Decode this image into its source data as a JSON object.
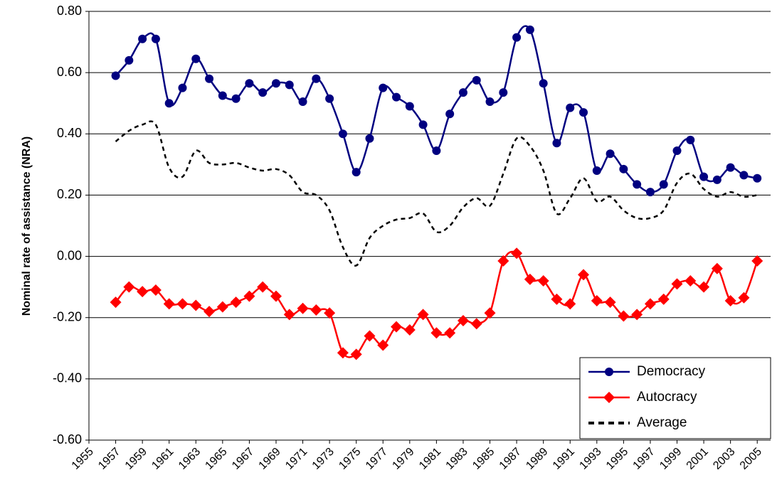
{
  "chart_data": {
    "type": "line",
    "y_label": "Nominal rate of assistance (NRA)",
    "x": [
      1957,
      1958,
      1959,
      1960,
      1961,
      1962,
      1963,
      1964,
      1965,
      1966,
      1967,
      1968,
      1969,
      1970,
      1971,
      1972,
      1973,
      1974,
      1975,
      1976,
      1977,
      1978,
      1979,
      1980,
      1981,
      1982,
      1983,
      1984,
      1985,
      1986,
      1987,
      1988,
      1989,
      1990,
      1991,
      1992,
      1993,
      1994,
      1995,
      1996,
      1997,
      1998,
      1999,
      2000,
      2001,
      2002,
      2003,
      2004,
      2005
    ],
    "xlim": [
      1955,
      2006
    ],
    "xticks": [
      1955,
      1957,
      1959,
      1961,
      1963,
      1965,
      1967,
      1969,
      1971,
      1973,
      1975,
      1977,
      1979,
      1981,
      1983,
      1985,
      1987,
      1989,
      1991,
      1993,
      1995,
      1997,
      1999,
      2001,
      2003,
      2005
    ],
    "ylim": [
      -0.6,
      0.8
    ],
    "yticks": [
      {
        "value": -0.6,
        "label": "-0.60"
      },
      {
        "value": -0.4,
        "label": "-0.40"
      },
      {
        "value": -0.2,
        "label": "-0.20"
      },
      {
        "value": 0,
        "label": "0.00"
      },
      {
        "value": 0.2,
        "label": "0.20"
      },
      {
        "value": 0.4,
        "label": "0.40"
      },
      {
        "value": 0.6,
        "label": "0.60"
      },
      {
        "value": 0.8,
        "label": "0.80"
      }
    ],
    "grid": true,
    "legend": "bottom-right",
    "series": [
      {
        "name": "Democracy",
        "color": "#000080",
        "marker": "circle",
        "line_style": "solid",
        "values": [
          0.59,
          0.64,
          0.71,
          0.71,
          0.5,
          0.55,
          0.645,
          0.58,
          0.525,
          0.515,
          0.565,
          0.535,
          0.565,
          0.56,
          0.505,
          0.58,
          0.515,
          0.4,
          0.275,
          0.385,
          0.55,
          0.52,
          0.49,
          0.43,
          0.345,
          0.465,
          0.535,
          0.575,
          0.505,
          0.535,
          0.715,
          0.74,
          0.565,
          0.37,
          0.485,
          0.47,
          0.28,
          0.335,
          0.285,
          0.235,
          0.21,
          0.235,
          0.345,
          0.38,
          0.26,
          0.25,
          0.29,
          0.265,
          0.255
        ]
      },
      {
        "name": "Autocracy",
        "color": "#ff0000",
        "marker": "diamond",
        "line_style": "solid",
        "values": [
          -0.15,
          -0.1,
          -0.115,
          -0.11,
          -0.155,
          -0.155,
          -0.16,
          -0.18,
          -0.165,
          -0.15,
          -0.13,
          -0.1,
          -0.13,
          -0.19,
          -0.17,
          -0.175,
          -0.185,
          -0.315,
          -0.32,
          -0.26,
          -0.29,
          -0.23,
          -0.24,
          -0.19,
          -0.25,
          -0.25,
          -0.21,
          -0.22,
          -0.185,
          -0.015,
          0.01,
          -0.075,
          -0.08,
          -0.14,
          -0.155,
          -0.06,
          -0.145,
          -0.15,
          -0.195,
          -0.19,
          -0.155,
          -0.14,
          -0.09,
          -0.08,
          -0.1,
          -0.04,
          -0.145,
          -0.135,
          -0.015
        ]
      },
      {
        "name": "Average",
        "color": "#000000",
        "marker": "none",
        "line_style": "dashed",
        "values": [
          0.375,
          0.41,
          0.43,
          0.43,
          0.29,
          0.26,
          0.345,
          0.305,
          0.3,
          0.305,
          0.29,
          0.28,
          0.285,
          0.265,
          0.21,
          0.2,
          0.15,
          0.03,
          -0.03,
          0.06,
          0.1,
          0.12,
          0.125,
          0.14,
          0.08,
          0.1,
          0.16,
          0.19,
          0.165,
          0.27,
          0.385,
          0.36,
          0.28,
          0.14,
          0.19,
          0.255,
          0.18,
          0.195,
          0.15,
          0.125,
          0.125,
          0.15,
          0.24,
          0.27,
          0.22,
          0.195,
          0.21,
          0.195,
          0.2
        ]
      }
    ]
  }
}
